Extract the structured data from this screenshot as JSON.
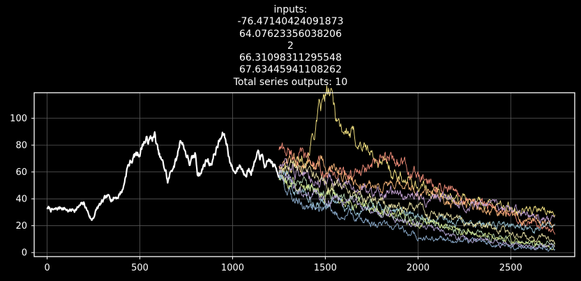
{
  "chart_data": {
    "type": "line",
    "title_lines": [
      "inputs:",
      "-76.47140424091873",
      "64.07623356038206",
      "2",
      "66.31098311295548",
      "67.63445941108262",
      "Total series outputs: 10"
    ],
    "xlabel": "",
    "ylabel": "",
    "xlim": [
      -70,
      2845
    ],
    "ylim": [
      -3,
      119
    ],
    "xticks": [
      0,
      500,
      1000,
      1500,
      2000,
      2500
    ],
    "yticks": [
      0,
      20,
      40,
      60,
      80,
      100
    ],
    "grid": true,
    "background": "#000000",
    "grid_color": "#5a5a5a",
    "axis_color": "#ffffff",
    "input_series": {
      "color": "#ffffff",
      "x_start": 0,
      "x_end": 1250,
      "anchors": [
        [
          0,
          33
        ],
        [
          40,
          31
        ],
        [
          80,
          34
        ],
        [
          120,
          31
        ],
        [
          160,
          33
        ],
        [
          200,
          36
        ],
        [
          240,
          24
        ],
        [
          270,
          33
        ],
        [
          320,
          40
        ],
        [
          380,
          42
        ],
        [
          410,
          48
        ],
        [
          430,
          63
        ],
        [
          470,
          72
        ],
        [
          500,
          75
        ],
        [
          520,
          83
        ],
        [
          560,
          84
        ],
        [
          580,
          87
        ],
        [
          600,
          73
        ],
        [
          640,
          60
        ],
        [
          650,
          52
        ],
        [
          680,
          65
        ],
        [
          700,
          70
        ],
        [
          720,
          86
        ],
        [
          745,
          76
        ],
        [
          770,
          66
        ],
        [
          800,
          72
        ],
        [
          810,
          60
        ],
        [
          830,
          60
        ],
        [
          860,
          70
        ],
        [
          880,
          66
        ],
        [
          920,
          80
        ],
        [
          950,
          88
        ],
        [
          970,
          80
        ],
        [
          990,
          66
        ],
        [
          1010,
          60
        ],
        [
          1040,
          66
        ],
        [
          1060,
          60
        ],
        [
          1080,
          63
        ],
        [
          1100,
          61
        ],
        [
          1140,
          72
        ],
        [
          1160,
          70
        ],
        [
          1180,
          62
        ],
        [
          1200,
          68
        ],
        [
          1250,
          59
        ]
      ]
    },
    "output_series": [
      {
        "color": "#fbe985",
        "x_start": 1250,
        "x_end": 2740,
        "anchors": [
          [
            1250,
            58
          ],
          [
            1400,
            75
          ],
          [
            1470,
            103
          ],
          [
            1520,
            118
          ],
          [
            1580,
            95
          ],
          [
            1700,
            80
          ],
          [
            1800,
            66
          ],
          [
            2000,
            50
          ],
          [
            2200,
            40
          ],
          [
            2400,
            36
          ],
          [
            2600,
            32
          ],
          [
            2740,
            29
          ]
        ]
      },
      {
        "color": "#f28e7a",
        "x_start": 1250,
        "x_end": 2740,
        "anchors": [
          [
            1250,
            78
          ],
          [
            1380,
            70
          ],
          [
            1500,
            60
          ],
          [
            1700,
            58
          ],
          [
            1870,
            72
          ],
          [
            1950,
            60
          ],
          [
            2100,
            48
          ],
          [
            2300,
            38
          ],
          [
            2500,
            28
          ],
          [
            2740,
            16
          ]
        ]
      },
      {
        "color": "#fdb97c",
        "x_start": 1250,
        "x_end": 2740,
        "anchors": [
          [
            1250,
            66
          ],
          [
            1400,
            68
          ],
          [
            1550,
            60
          ],
          [
            1700,
            52
          ],
          [
            1900,
            48
          ],
          [
            2100,
            42
          ],
          [
            2300,
            35
          ],
          [
            2500,
            27
          ],
          [
            2740,
            21
          ]
        ]
      },
      {
        "color": "#c6a4d6",
        "x_start": 1250,
        "x_end": 2740,
        "anchors": [
          [
            1250,
            63
          ],
          [
            1400,
            58
          ],
          [
            1550,
            52
          ],
          [
            1700,
            46
          ],
          [
            1850,
            44
          ],
          [
            2000,
            42
          ],
          [
            2200,
            40
          ],
          [
            2400,
            34
          ],
          [
            2600,
            27
          ],
          [
            2740,
            23
          ]
        ]
      },
      {
        "color": "#9cc9d9",
        "x_start": 1250,
        "x_end": 2740,
        "anchors": [
          [
            1250,
            60
          ],
          [
            1350,
            45
          ],
          [
            1450,
            38
          ],
          [
            1550,
            36
          ],
          [
            1700,
            34
          ],
          [
            1900,
            30
          ],
          [
            2100,
            26
          ],
          [
            2300,
            22
          ],
          [
            2500,
            19
          ],
          [
            2740,
            17
          ]
        ]
      },
      {
        "color": "#b6d9b2",
        "x_start": 1250,
        "x_end": 2740,
        "anchors": [
          [
            1250,
            57
          ],
          [
            1350,
            50
          ],
          [
            1450,
            46
          ],
          [
            1550,
            42
          ],
          [
            1750,
            35
          ],
          [
            1950,
            25
          ],
          [
            2150,
            19
          ],
          [
            2350,
            13
          ],
          [
            2550,
            9
          ],
          [
            2740,
            6
          ]
        ]
      },
      {
        "color": "#d1e58c",
        "x_start": 1250,
        "x_end": 2740,
        "anchors": [
          [
            1250,
            55
          ],
          [
            1350,
            50
          ],
          [
            1450,
            48
          ],
          [
            1600,
            40
          ],
          [
            1800,
            32
          ],
          [
            2000,
            24
          ],
          [
            2200,
            17
          ],
          [
            2400,
            11
          ],
          [
            2600,
            7
          ],
          [
            2740,
            5
          ]
        ]
      },
      {
        "color": "#8fb1d3",
        "x_start": 1250,
        "x_end": 2740,
        "anchors": [
          [
            1250,
            56
          ],
          [
            1330,
            40
          ],
          [
            1400,
            34
          ],
          [
            1500,
            30
          ],
          [
            1650,
            28
          ],
          [
            1850,
            20
          ],
          [
            2000,
            12
          ],
          [
            2200,
            9
          ],
          [
            2400,
            6
          ],
          [
            2600,
            4
          ],
          [
            2740,
            3
          ]
        ]
      },
      {
        "color": "#e8e0a4",
        "x_start": 1250,
        "x_end": 2740,
        "anchors": [
          [
            1250,
            62
          ],
          [
            1400,
            58
          ],
          [
            1550,
            50
          ],
          [
            1700,
            42
          ],
          [
            1900,
            35
          ],
          [
            2100,
            27
          ],
          [
            2300,
            22
          ],
          [
            2500,
            15
          ],
          [
            2740,
            8
          ]
        ]
      },
      {
        "color": "#b7a8d8",
        "x_start": 1250,
        "x_end": 2740,
        "anchors": [
          [
            1250,
            58
          ],
          [
            1350,
            48
          ],
          [
            1450,
            42
          ],
          [
            1600,
            38
          ],
          [
            1800,
            30
          ],
          [
            2000,
            20
          ],
          [
            2200,
            12
          ],
          [
            2400,
            7
          ],
          [
            2600,
            5
          ],
          [
            2740,
            4
          ]
        ]
      }
    ]
  }
}
